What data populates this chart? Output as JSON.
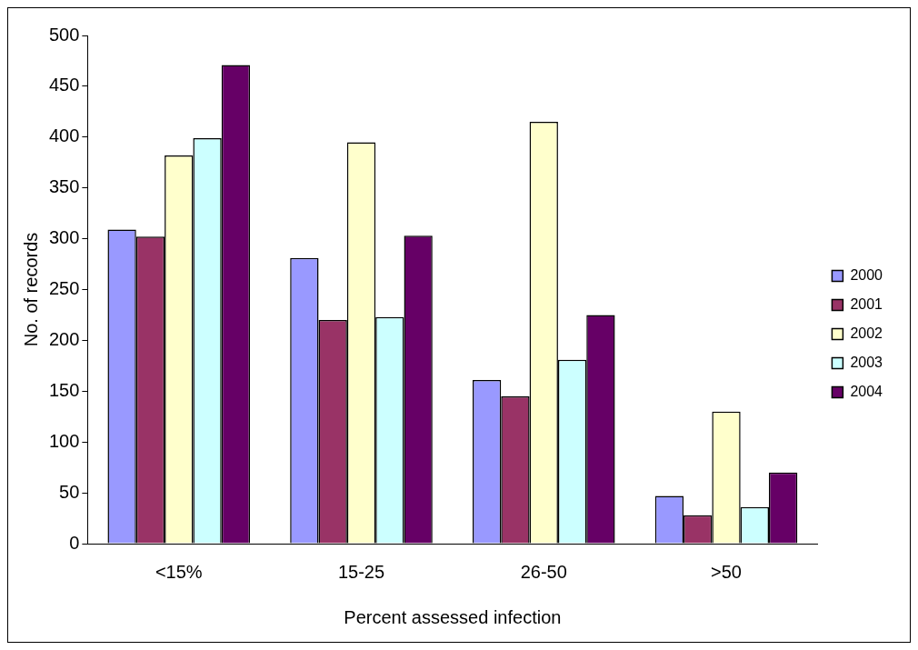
{
  "chart_data": {
    "type": "bar",
    "xlabel": "Percent assessed infection",
    "ylabel": "No. of records",
    "categories": [
      "<15%",
      "15-25",
      "26-50",
      ">50"
    ],
    "series": [
      {
        "name": "2000",
        "color": "#9999ff",
        "values": [
          309,
          281,
          161,
          47
        ]
      },
      {
        "name": "2001",
        "color": "#993366",
        "values": [
          302,
          220,
          145,
          28
        ]
      },
      {
        "name": "2002",
        "color": "#ffffcc",
        "values": [
          382,
          395,
          415,
          130
        ]
      },
      {
        "name": "2003",
        "color": "#ccffff",
        "values": [
          399,
          223,
          181,
          36
        ]
      },
      {
        "name": "2004",
        "color": "#660066",
        "values": [
          471,
          303,
          225,
          70
        ]
      }
    ],
    "ylim": [
      0,
      500
    ],
    "yticks": [
      0,
      50,
      100,
      150,
      200,
      250,
      300,
      350,
      400,
      450,
      500
    ],
    "grid": false,
    "legend": "right"
  }
}
